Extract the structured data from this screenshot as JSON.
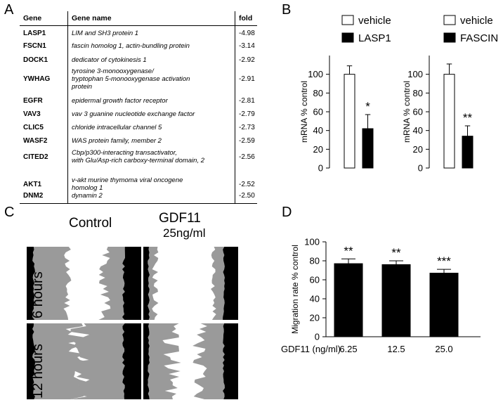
{
  "panels": {
    "a": "A",
    "b": "B",
    "c": "C",
    "d": "D"
  },
  "table": {
    "headers": {
      "gene": "Gene",
      "name": "Gene name",
      "fold": "fold"
    },
    "rows": [
      {
        "gene": "LASP1",
        "name": [
          "LIM and SH3 protein 1"
        ],
        "fold": "-4.98"
      },
      {
        "gene": "FSCN1",
        "name": [
          "fascin homolog 1, actin-bundling protein"
        ],
        "fold": "-3.14"
      },
      {
        "gene": "DOCK1",
        "name": [
          "dedicator of cytokinesis 1"
        ],
        "fold": "-2.92"
      },
      {
        "gene": "YWHAG",
        "name": [
          "tyrosine 3-monooxygenase/",
          "tryptophan 5-monooxygenase activation",
          "protein"
        ],
        "fold": "-2.91"
      },
      {
        "gene": "EGFR",
        "name": [
          "epidermal growth factor receptor"
        ],
        "fold": "-2.81"
      },
      {
        "gene": "VAV3",
        "name": [
          "vav 3 guanine nucleotide exchange factor"
        ],
        "fold": "-2.79"
      },
      {
        "gene": "CLIC5",
        "name": [
          "chloride intracellular channel 5"
        ],
        "fold": "-2.73"
      },
      {
        "gene": "WASF2",
        "name": [
          "WAS protein family, member 2"
        ],
        "fold": "-2.59"
      },
      {
        "gene": "CITED2",
        "name": [
          "Cbp/p300-interacting transactivator,",
          "with Glu/Asp-rich carboxy-terminal domain, 2"
        ],
        "fold": "-2.56"
      },
      {
        "gene": "AKT1",
        "name": [
          "v-akt murine thymoma viral oncogene",
          "homolog 1"
        ],
        "fold": "-2.52"
      },
      {
        "gene": "DNM2",
        "name": [
          "dynamin 2"
        ],
        "fold": "-2.50"
      }
    ]
  },
  "wound_assay": {
    "control_label": "Control",
    "gdf11_label": "GDF11",
    "gdf11_dose": "25ng/ml",
    "row_labels": [
      "6 hours",
      "12 hours"
    ]
  },
  "colors": {
    "bar_fill": "#000000",
    "vehicle_fill": "#ffffff",
    "cell_gray": "#9a9a9a"
  },
  "chart_data": [
    {
      "type": "bar",
      "panel": "B-left",
      "categories": [
        "vehicle",
        "LASP1"
      ],
      "values": [
        100,
        42
      ],
      "errors": [
        9,
        15
      ],
      "significance": [
        "",
        "*"
      ],
      "fills": [
        "#ffffff",
        "#000000"
      ],
      "ylabel": "mRNA % control",
      "ylim": [
        0,
        120
      ],
      "yticks": [
        "0",
        "20",
        "40",
        "60",
        "80",
        "100"
      ],
      "legend": [
        "vehicle",
        "LASP1"
      ],
      "legend_position": "top"
    },
    {
      "type": "bar",
      "panel": "B-right",
      "categories": [
        "vehicle",
        "FASCIN"
      ],
      "values": [
        100,
        34
      ],
      "errors": [
        11,
        11
      ],
      "significance": [
        "",
        "**"
      ],
      "fills": [
        "#ffffff",
        "#000000"
      ],
      "ylabel": "mRNA % control",
      "ylim": [
        0,
        120
      ],
      "yticks": [
        "0",
        "20",
        "40",
        "60",
        "80",
        "100"
      ],
      "legend": [
        "vehicle",
        "FASCIN"
      ],
      "legend_position": "top"
    },
    {
      "type": "bar",
      "panel": "D",
      "categories": [
        "6.25",
        "12.5",
        "25.0"
      ],
      "values": [
        77,
        76,
        67
      ],
      "errors": [
        5,
        4,
        4
      ],
      "significance": [
        "**",
        "**",
        "***"
      ],
      "fills": [
        "#000000",
        "#000000",
        "#000000"
      ],
      "xlabel": "GDF11 (ng/ml)",
      "ylabel": "Migration rate % control",
      "ylim": [
        0,
        100
      ],
      "yticks": [
        "0",
        "20",
        "40",
        "60",
        "80",
        "100"
      ]
    }
  ]
}
